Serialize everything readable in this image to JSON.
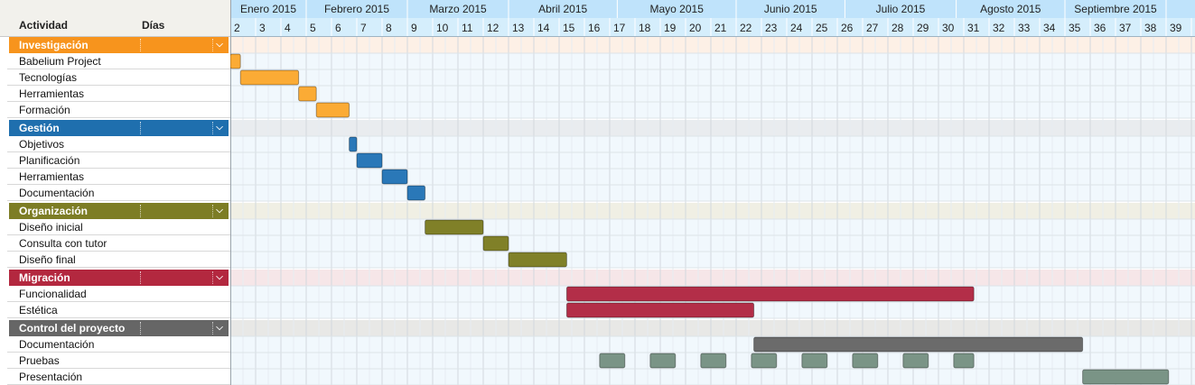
{
  "header": {
    "activity_label": "Actividad",
    "days_label": "Días"
  },
  "months": [
    "Enero 2015",
    "Febrero 2015",
    "Marzo 2015",
    "Abril 2015",
    "Mayo 2015",
    "Junio 2015",
    "Julio 2015",
    "Agosto 2015",
    "Septiembre 2015"
  ],
  "weeks": [
    "2",
    "3",
    "4",
    "5",
    "6",
    "7",
    "8",
    "9",
    "10",
    "11",
    "12",
    "13",
    "14",
    "15",
    "16",
    "17",
    "18",
    "19",
    "20",
    "21",
    "22",
    "23",
    "24",
    "25",
    "26",
    "27",
    "28",
    "29",
    "30",
    "31",
    "32",
    "33",
    "34",
    "35",
    "36",
    "37",
    "38",
    "39",
    "4"
  ],
  "colors": {
    "Investigación": "#f7941d",
    "Gestión": "#1f6fae",
    "Organización": "#7d7d25",
    "Migración": "#b3283f",
    "Control del proyecto": "#666666"
  },
  "chart_data": {
    "type": "gantt",
    "x_unit": "week",
    "groups": [
      {
        "name": "Investigación",
        "color": "#f7941d",
        "bar_color": "#fbab35",
        "row_tint": "#fdf0e6",
        "tasks": [
          {
            "name": "Babelium Project",
            "spans": [
              [
                2,
                2.4
              ]
            ]
          },
          {
            "name": "Tecnologías",
            "spans": [
              [
                2.4,
                4.7
              ]
            ]
          },
          {
            "name": "Herramientas",
            "spans": [
              [
                4.7,
                5.4
              ]
            ]
          },
          {
            "name": "Formación",
            "spans": [
              [
                5.4,
                6.7
              ]
            ]
          }
        ]
      },
      {
        "name": "Gestión",
        "color": "#1f6fae",
        "bar_color": "#2a78b8",
        "row_tint": "#e9ecef",
        "tasks": [
          {
            "name": "Objetivos",
            "spans": [
              [
                6.7,
                7.0
              ]
            ]
          },
          {
            "name": "Planificación",
            "spans": [
              [
                7.0,
                8.0
              ]
            ]
          },
          {
            "name": "Herramientas",
            "spans": [
              [
                8.0,
                9.0
              ]
            ]
          },
          {
            "name": "Documentación",
            "spans": [
              [
                9.0,
                9.7
              ]
            ]
          }
        ]
      },
      {
        "name": "Organización",
        "color": "#7d7d25",
        "bar_color": "#808028",
        "row_tint": "#f0efe4",
        "tasks": [
          {
            "name": "Diseño inicial",
            "spans": [
              [
                9.7,
                12.0
              ]
            ]
          },
          {
            "name": "Consulta con tutor",
            "spans": [
              [
                12.0,
                13.0
              ]
            ]
          },
          {
            "name": "Diseño final",
            "spans": [
              [
                13.0,
                15.3
              ]
            ]
          }
        ]
      },
      {
        "name": "Migración",
        "color": "#b3283f",
        "bar_color": "#b32e48",
        "row_tint": "#f6e6e8",
        "tasks": [
          {
            "name": "Funcionalidad",
            "spans": [
              [
                15.3,
                31.4
              ]
            ]
          },
          {
            "name": "Estética",
            "spans": [
              [
                15.3,
                22.7
              ]
            ]
          }
        ]
      },
      {
        "name": "Control del proyecto",
        "color": "#666666",
        "bar_color": "#6b6b6b",
        "row_tint": "#e8e8e6",
        "tasks": [
          {
            "name": "Documentación",
            "spans": [
              [
                22.7,
                35.7
              ]
            ],
            "bar_color": "#6b6b6b"
          },
          {
            "name": "Pruebas",
            "spans": [
              [
                16.6,
                17.6
              ],
              [
                18.6,
                19.6
              ],
              [
                20.6,
                21.6
              ],
              [
                22.6,
                23.6
              ],
              [
                24.6,
                25.6
              ],
              [
                26.6,
                27.6
              ],
              [
                28.6,
                29.6
              ],
              [
                30.6,
                31.4
              ]
            ],
            "bar_color": "#7a9486"
          },
          {
            "name": "Presentación",
            "spans": [
              [
                35.7,
                39.1
              ]
            ],
            "bar_color": "#7a9486"
          }
        ]
      }
    ]
  }
}
